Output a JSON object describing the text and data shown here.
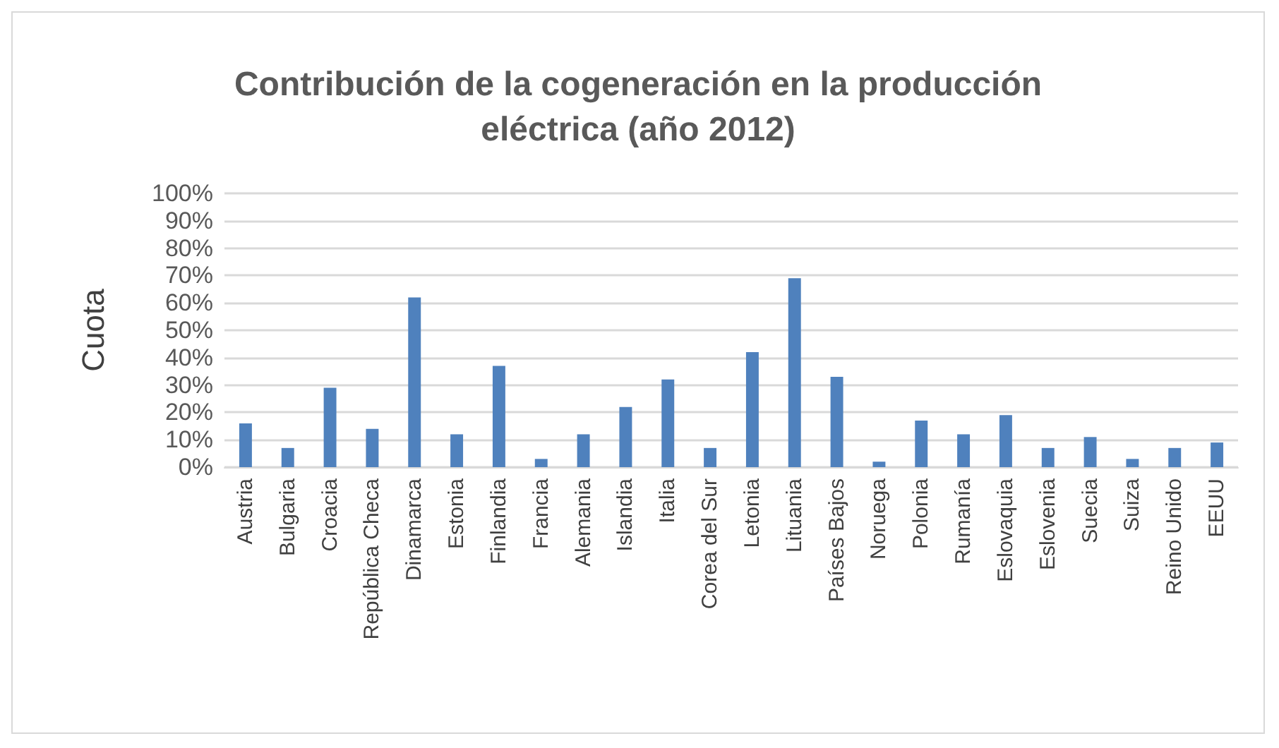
{
  "chart_data": {
    "type": "bar",
    "title": "Contribución de la cogeneración en la producción\neléctrica (año 2012)",
    "ylabel": "Cuota",
    "categories": [
      "Austria",
      "Bulgaria",
      "Croacia",
      "República Checa",
      "Dinamarca",
      "Estonia",
      "Finlandia",
      "Francia",
      "Alemania",
      "Islandia",
      "Italia",
      "Corea del Sur",
      "Letonia",
      "Lituania",
      "Países Bajos",
      "Noruega",
      "Polonia",
      "Rumanía",
      "Eslovaquia",
      "Eslovenia",
      "Suecia",
      "Suiza",
      "Reino Unido",
      "EEUU"
    ],
    "values": [
      16,
      7,
      29,
      14,
      62,
      12,
      37,
      3,
      12,
      22,
      32,
      7,
      42,
      69,
      33,
      2,
      17,
      12,
      19,
      7,
      11,
      3,
      7,
      9
    ],
    "color": "#4f81bd",
    "ylim": [
      0,
      100
    ],
    "yticks": [
      {
        "value": 0,
        "label": "0%"
      },
      {
        "value": 10,
        "label": "10%"
      },
      {
        "value": 20,
        "label": "20%"
      },
      {
        "value": 30,
        "label": "30%"
      },
      {
        "value": 40,
        "label": "40%"
      },
      {
        "value": 50,
        "label": "50%"
      },
      {
        "value": 60,
        "label": "60%"
      },
      {
        "value": 70,
        "label": "70%"
      },
      {
        "value": 80,
        "label": "80%"
      },
      {
        "value": 90,
        "label": "90%"
      },
      {
        "value": 100,
        "label": "100%"
      }
    ],
    "grid": "y"
  }
}
